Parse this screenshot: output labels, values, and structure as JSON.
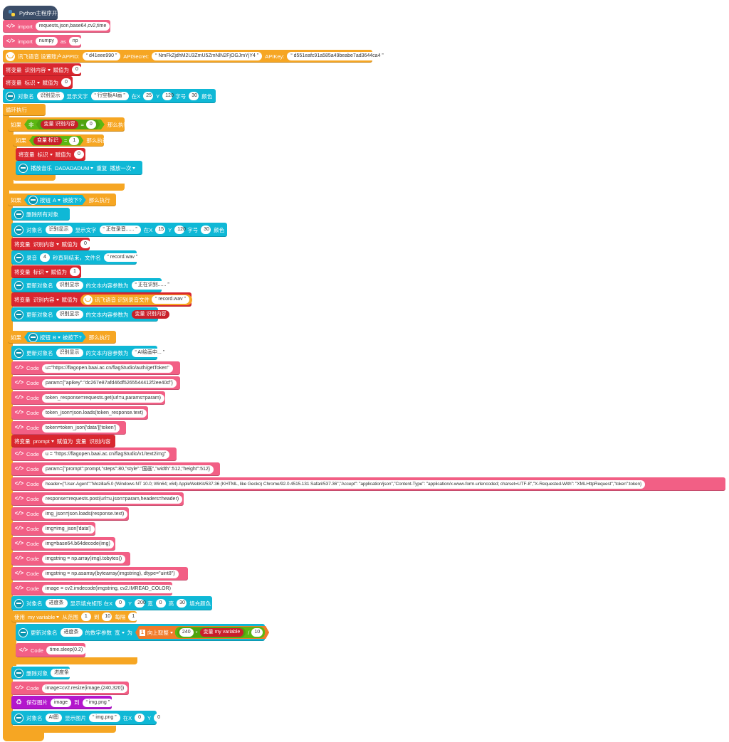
{
  "blocks": {
    "start": "Python主程序开始",
    "import1": {
      "kw": "import",
      "val": "requests,json,base64,cv2,time"
    },
    "import2": {
      "kw": "import",
      "val": "numpy",
      "as": "as",
      "alias": "np"
    },
    "xf_init": {
      "label": "讯飞语音 设置账户APPID:",
      "appid": "d41eee990",
      "secret_label": "APISecret:",
      "secret": "NmFkZjdhM2U3ZmU5ZmNlN2FjOGJmYjY4",
      "key_label": "APIKey:",
      "key": "d551eafc91a585a49beabe7ad3644ca4"
    },
    "set_var1": {
      "label": "将变量",
      "var": "识别内容",
      "assign": "赋值为",
      "val": "0"
    },
    "set_var2": {
      "label": "将变量",
      "var": "标识",
      "assign": "赋值为",
      "val": "0"
    },
    "show_text1": {
      "label": "对象名",
      "name": "识别显示",
      "text_label": "显示文字",
      "text": "行空板AI画",
      "x_label": "在X",
      "x": "25",
      "y_label": "Y",
      "y": "120",
      "size_label": "字号",
      "size": "30",
      "color_label": "颜色",
      "color": "#0022ee"
    },
    "loop": "循环执行",
    "if1": {
      "label": "如果",
      "not": "非",
      "var_word": "变量",
      "var": "识别内容",
      "eq": "=",
      "val": "0",
      "then": "那么执行"
    },
    "if2": {
      "label": "如果",
      "var_word": "变量",
      "var": "标识",
      "eq": "=",
      "val": "1",
      "then": "那么执行"
    },
    "set_var3": {
      "label": "将变量",
      "var": "标识",
      "assign": "赋值为",
      "val": "0"
    },
    "play": {
      "label": "播放音乐",
      "music": "DADADADUM",
      "repeat": "重复",
      "mode": "播放一次"
    },
    "ifA": {
      "label": "如果",
      "btn": "按钮",
      "key": "A",
      "pressed": "被按下?",
      "then": "那么执行"
    },
    "clear": "删除所有对象",
    "show_text2": {
      "label": "对象名",
      "name": "识别显示",
      "text_label": "显示文字",
      "text": "正在录音......",
      "x_label": "在X",
      "x": "15",
      "y_label": "Y",
      "y": "120",
      "size_label": "字号",
      "size": "30",
      "color_label": "颜色",
      "color": "#0022ee"
    },
    "set_var4": {
      "label": "将变量",
      "var": "识别内容",
      "assign": "赋值为",
      "val": "0"
    },
    "record": {
      "label": "录音",
      "sec": "4",
      "mid": "秒直到结束，文件名",
      "file": "record.wav"
    },
    "set_var5": {
      "label": "将变量",
      "var": "标识",
      "assign": "赋值为",
      "val": "1"
    },
    "update1": {
      "label": "更新对象名",
      "name": "识别显示",
      "mid": "的文本内容参数为",
      "text": "正在识别......"
    },
    "set_var6": {
      "label": "将变量",
      "var": "识别内容",
      "assign": "赋值为",
      "xf": "讯飞语音 识别录音文件",
      "file": "record.wav"
    },
    "update2": {
      "label": "更新对象名",
      "name": "识别显示",
      "mid": "的文本内容参数为",
      "var_word": "变量",
      "var": "识别内容"
    },
    "ifB": {
      "label": "如果",
      "btn": "按钮",
      "key": "B",
      "pressed": "被按下?",
      "then": "那么执行"
    },
    "update3": {
      "label": "更新对象名",
      "name": "识别显示",
      "mid": "的文本内容参数为",
      "text": "AI绘画中..."
    },
    "code_word": "Code",
    "code1": "u=\"https://flagopen.baai.ac.cn/flagStudio/auth/getToken\"",
    "code2": "param={\"apikey\":\"dc267e87afd46df5265544412f2ee40d\"}",
    "code3": "token_response=requests.get(url=u,params=param)",
    "code4": "token_json=json.loads(token_response.text)",
    "code5": "token=token_json['data']['token']",
    "set_prompt": {
      "label": "将变量",
      "var": "prompt",
      "assign": "赋值为",
      "var_word": "变量",
      "src": "识别内容"
    },
    "code6": "u = \"https://flagopen.baai.ac.cn/flagStudio/v1/text2img\"",
    "code7": "param={\"prompt\":prompt,\"steps\":80,\"style\":\"国画\",\"width\":512,\"height\":512}",
    "code8": "header={\"User-Agent\":\"Mozilla/5.0 (Windows NT 10.0; Win64; x64) AppleWebKit/537.36 (KHTML, like Gecko) Chrome/92.0.4515.131 Safari/537.36\",\"Accept\": \"application/json\",\"Content-Type\": \"application/x-www-form-urlencoded; charset=UTF-8\",\"X-Requested-With\": \"XMLHttpRequest\",\"token\":token}",
    "code9": "response=requests.post(url=u,json=param,headers=header)",
    "code10": "img_json=json.loads(response.text)",
    "code11": "img=img_json['data']",
    "code12": "img=base64.b64decode(img)",
    "code13": "imgstring = np.array(img).tobytes()",
    "code14": "imgstring = np.asarray(bytearray(imgstring), dtype=\"uint8\")",
    "code15": "image = cv2.imdecode(imgstring, cv2.IMREAD_COLOR)",
    "fill_rect": {
      "label": "对象名",
      "name": "进度条",
      "mid": "显示填充矩形 在X",
      "x": "0",
      "y_label": "Y",
      "y": "200",
      "w_label": "宽",
      "w": "0",
      "h_label": "高",
      "h": "30",
      "color_label": "填充颜色",
      "color": "#e0001b"
    },
    "for_loop": {
      "label": "使用",
      "var": "my variable",
      "from": "从范围",
      "start": "1",
      "to": "到",
      "end": "10",
      "step_label": "每隔",
      "step": "1"
    },
    "update4": {
      "label": "更新对象名",
      "name": "进度条",
      "mid": "的数字参数",
      "param": "宽",
      "to": "为",
      "num": "1",
      "round": "向上取整",
      "a": "240",
      "mul": "*",
      "var_word": "变量",
      "var": "my variable",
      "div": "/",
      "b": "10"
    },
    "code16": "time.sleep(0.2)",
    "del_obj": {
      "label": "删除对象",
      "name": "进度条"
    },
    "code17": "image=cv2.resize(image,(240,320))",
    "save_img": {
      "label": "保存图片",
      "img": "image",
      "to": "到",
      "file": "img.png"
    },
    "show_img": {
      "label": "对象名",
      "name": "AI图",
      "mid": "显示图片",
      "file": "img.png",
      "x_label": "在X",
      "x": "0",
      "y_label": "Y",
      "y": "0"
    }
  }
}
